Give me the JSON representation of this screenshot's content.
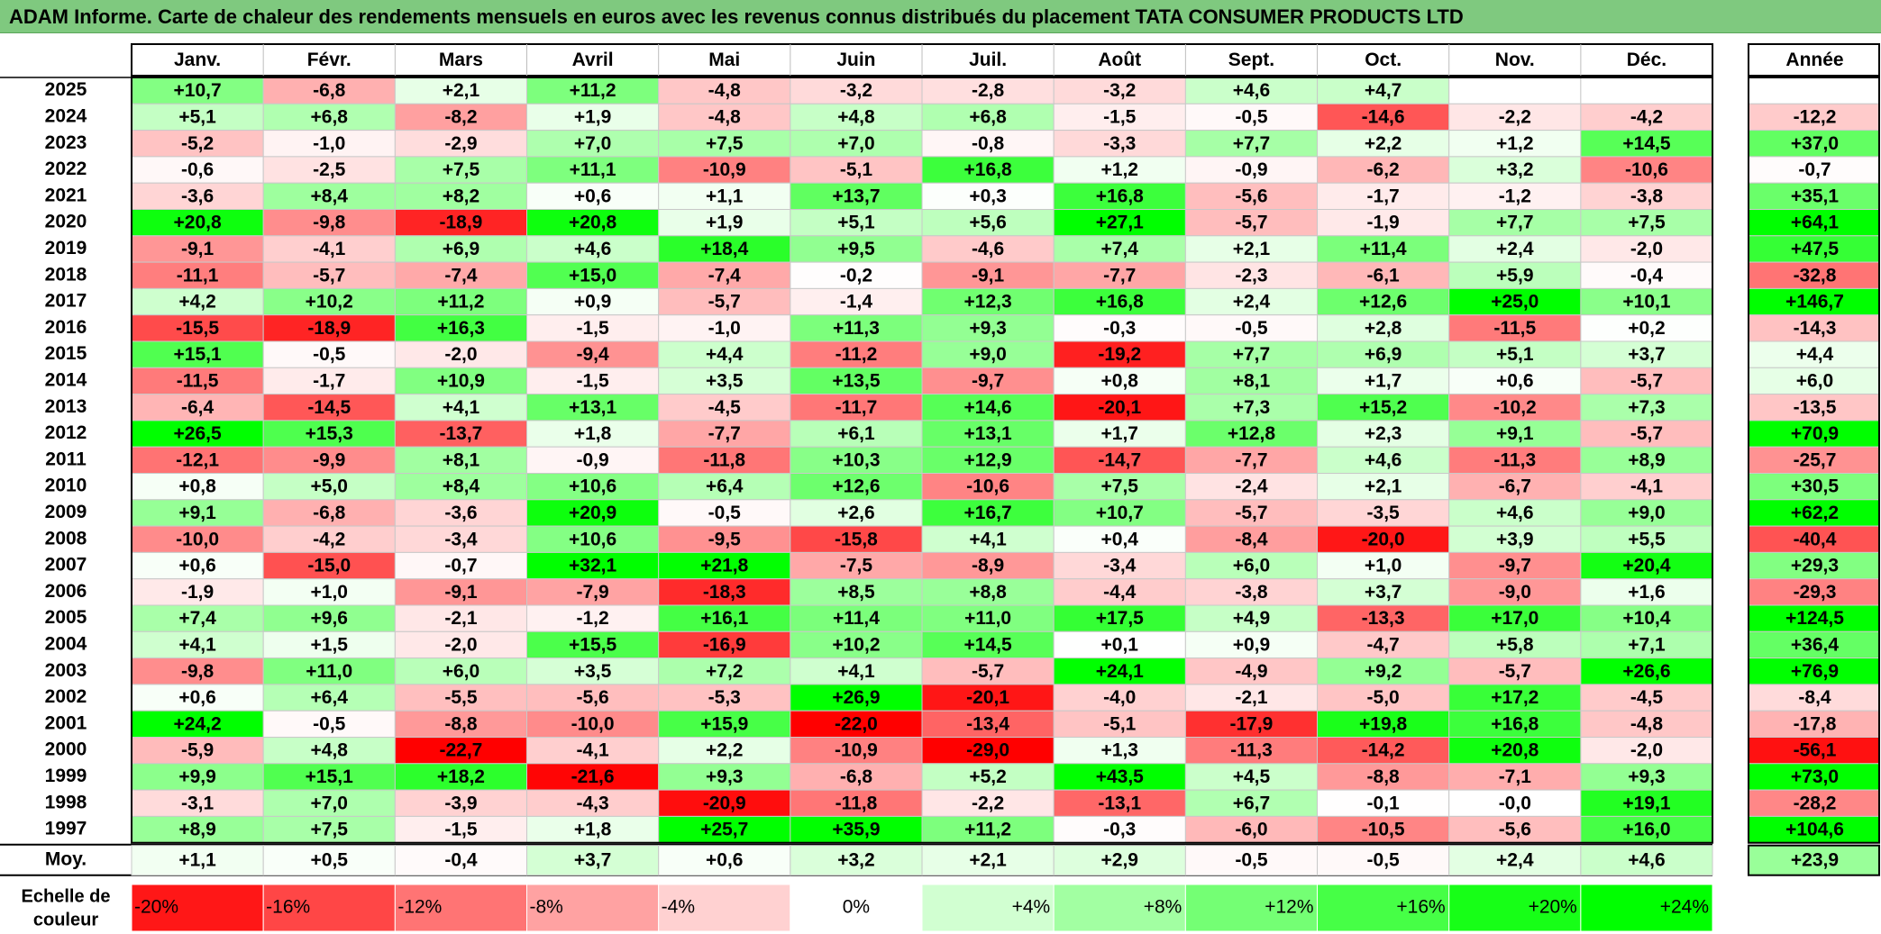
{
  "title": "ADAM Informe. Carte de chaleur des rendements mensuels en euros avec les revenus connus distribués du placement TATA CONSUMER PRODUCTS LTD",
  "colors": {
    "title_bg": "#7fc97f",
    "neg_max": "#ff0000",
    "pos_max": "#00ff00",
    "neutral": "#ffffff"
  },
  "chart_data": {
    "type": "heatmap",
    "months": [
      "Janv.",
      "Févr.",
      "Mars",
      "Avril",
      "Mai",
      "Juin",
      "Juil.",
      "Août",
      "Sept.",
      "Oct.",
      "Nov.",
      "Déc."
    ],
    "year_header": "Année",
    "rows": [
      {
        "year": "2025",
        "values": [
          "+10,7",
          "-6,8",
          "+2,1",
          "+11,2",
          "-4,8",
          "-3,2",
          "-2,8",
          "-3,2",
          "+4,6",
          "+4,7",
          "",
          ""
        ],
        "annual": ""
      },
      {
        "year": "2024",
        "values": [
          "+5,1",
          "+6,8",
          "-8,2",
          "+1,9",
          "-4,8",
          "+4,8",
          "+6,8",
          "-1,5",
          "-0,5",
          "-14,6",
          "-2,2",
          "-4,2"
        ],
        "annual": "-12,2"
      },
      {
        "year": "2023",
        "values": [
          "-5,2",
          "-1,0",
          "-2,9",
          "+7,0",
          "+7,5",
          "+7,0",
          "-0,8",
          "-3,3",
          "+7,7",
          "+2,2",
          "+1,2",
          "+14,5"
        ],
        "annual": "+37,0"
      },
      {
        "year": "2022",
        "values": [
          "-0,6",
          "-2,5",
          "+7,5",
          "+11,1",
          "-10,9",
          "-5,1",
          "+16,8",
          "+1,2",
          "-0,9",
          "-6,2",
          "+3,2",
          "-10,6"
        ],
        "annual": "-0,7"
      },
      {
        "year": "2021",
        "values": [
          "-3,6",
          "+8,4",
          "+8,2",
          "+0,6",
          "+1,1",
          "+13,7",
          "+0,3",
          "+16,8",
          "-5,6",
          "-1,7",
          "-1,2",
          "-3,8"
        ],
        "annual": "+35,1"
      },
      {
        "year": "2020",
        "values": [
          "+20,8",
          "-9,8",
          "-18,9",
          "+20,8",
          "+1,9",
          "+5,1",
          "+5,6",
          "+27,1",
          "-5,7",
          "-1,9",
          "+7,7",
          "+7,5"
        ],
        "annual": "+64,1"
      },
      {
        "year": "2019",
        "values": [
          "-9,1",
          "-4,1",
          "+6,9",
          "+4,6",
          "+18,4",
          "+9,5",
          "-4,6",
          "+7,4",
          "+2,1",
          "+11,4",
          "+2,4",
          "-2,0"
        ],
        "annual": "+47,5"
      },
      {
        "year": "2018",
        "values": [
          "-11,1",
          "-5,7",
          "-7,4",
          "+15,0",
          "-7,4",
          "-0,2",
          "-9,1",
          "-7,7",
          "-2,3",
          "-6,1",
          "+5,9",
          "-0,4"
        ],
        "annual": "-32,8"
      },
      {
        "year": "2017",
        "values": [
          "+4,2",
          "+10,2",
          "+11,2",
          "+0,9",
          "-5,7",
          "-1,4",
          "+12,3",
          "+16,8",
          "+2,4",
          "+12,6",
          "+25,0",
          "+10,1"
        ],
        "annual": "+146,7"
      },
      {
        "year": "2016",
        "values": [
          "-15,5",
          "-18,9",
          "+16,3",
          "-1,5",
          "-1,0",
          "+11,3",
          "+9,3",
          "-0,3",
          "-0,5",
          "+2,8",
          "-11,5",
          "+0,2"
        ],
        "annual": "-14,3"
      },
      {
        "year": "2015",
        "values": [
          "+15,1",
          "-0,5",
          "-2,0",
          "-9,4",
          "+4,4",
          "-11,2",
          "+9,0",
          "-19,2",
          "+7,7",
          "+6,9",
          "+5,1",
          "+3,7"
        ],
        "annual": "+4,4"
      },
      {
        "year": "2014",
        "values": [
          "-11,5",
          "-1,7",
          "+10,9",
          "-1,5",
          "+3,5",
          "+13,5",
          "-9,7",
          "+0,8",
          "+8,1",
          "+1,7",
          "+0,6",
          "-5,7"
        ],
        "annual": "+6,0"
      },
      {
        "year": "2013",
        "values": [
          "-6,4",
          "-14,5",
          "+4,1",
          "+13,1",
          "-4,5",
          "-11,7",
          "+14,6",
          "-20,1",
          "+7,3",
          "+15,2",
          "-10,2",
          "+7,3"
        ],
        "annual": "-13,5"
      },
      {
        "year": "2012",
        "values": [
          "+26,5",
          "+15,3",
          "-13,7",
          "+1,8",
          "-7,7",
          "+6,1",
          "+13,1",
          "+1,7",
          "+12,8",
          "+2,3",
          "+9,1",
          "-5,7"
        ],
        "annual": "+70,9"
      },
      {
        "year": "2011",
        "values": [
          "-12,1",
          "-9,9",
          "+8,1",
          "-0,9",
          "-11,8",
          "+10,3",
          "+12,9",
          "-14,7",
          "-7,7",
          "+4,6",
          "-11,3",
          "+8,9"
        ],
        "annual": "-25,7"
      },
      {
        "year": "2010",
        "values": [
          "+0,8",
          "+5,0",
          "+8,4",
          "+10,6",
          "+6,4",
          "+12,6",
          "-10,6",
          "+7,5",
          "-2,4",
          "+2,1",
          "-6,7",
          "-4,1"
        ],
        "annual": "+30,5"
      },
      {
        "year": "2009",
        "values": [
          "+9,1",
          "-6,8",
          "-3,6",
          "+20,9",
          "-0,5",
          "+2,6",
          "+16,7",
          "+10,7",
          "-5,7",
          "-3,5",
          "+4,6",
          "+9,0"
        ],
        "annual": "+62,2"
      },
      {
        "year": "2008",
        "values": [
          "-10,0",
          "-4,2",
          "-3,4",
          "+10,6",
          "-9,5",
          "-15,8",
          "+4,1",
          "+0,4",
          "-8,4",
          "-20,0",
          "+3,9",
          "+5,5"
        ],
        "annual": "-40,4"
      },
      {
        "year": "2007",
        "values": [
          "+0,6",
          "-15,0",
          "-0,7",
          "+32,1",
          "+21,8",
          "-7,5",
          "-8,9",
          "-3,4",
          "+6,0",
          "+1,0",
          "-9,7",
          "+20,4"
        ],
        "annual": "+29,3"
      },
      {
        "year": "2006",
        "values": [
          "-1,9",
          "+1,0",
          "-9,1",
          "-7,9",
          "-18,3",
          "+8,5",
          "+8,8",
          "-4,4",
          "-3,8",
          "+3,7",
          "-9,0",
          "+1,6"
        ],
        "annual": "-29,3"
      },
      {
        "year": "2005",
        "values": [
          "+7,4",
          "+9,6",
          "-2,1",
          "-1,2",
          "+16,1",
          "+11,4",
          "+11,0",
          "+17,5",
          "+4,9",
          "-13,3",
          "+17,0",
          "+10,4"
        ],
        "annual": "+124,5"
      },
      {
        "year": "2004",
        "values": [
          "+4,1",
          "+1,5",
          "-2,0",
          "+15,5",
          "-16,9",
          "+10,2",
          "+14,5",
          "+0,1",
          "+0,9",
          "-4,7",
          "+5,8",
          "+7,1"
        ],
        "annual": "+36,4"
      },
      {
        "year": "2003",
        "values": [
          "-9,8",
          "+11,0",
          "+6,0",
          "+3,5",
          "+7,2",
          "+4,1",
          "-5,7",
          "+24,1",
          "-4,9",
          "+9,2",
          "-5,7",
          "+26,6"
        ],
        "annual": "+76,9"
      },
      {
        "year": "2002",
        "values": [
          "+0,6",
          "+6,4",
          "-5,5",
          "-5,6",
          "-5,3",
          "+26,9",
          "-20,1",
          "-4,0",
          "-2,1",
          "-5,0",
          "+17,2",
          "-4,5"
        ],
        "annual": "-8,4"
      },
      {
        "year": "2001",
        "values": [
          "+24,2",
          "-0,5",
          "-8,8",
          "-10,0",
          "+15,9",
          "-22,0",
          "-13,4",
          "-5,1",
          "-17,9",
          "+19,8",
          "+16,8",
          "-4,8"
        ],
        "annual": "-17,8"
      },
      {
        "year": "2000",
        "values": [
          "-5,9",
          "+4,8",
          "-22,7",
          "-4,1",
          "+2,2",
          "-10,9",
          "-29,0",
          "+1,3",
          "-11,3",
          "-14,2",
          "+20,8",
          "-2,0"
        ],
        "annual": "-56,1"
      },
      {
        "year": "1999",
        "values": [
          "+9,9",
          "+15,1",
          "+18,2",
          "-21,6",
          "+9,3",
          "-6,8",
          "+5,2",
          "+43,5",
          "+4,5",
          "-8,8",
          "-7,1",
          "+9,3"
        ],
        "annual": "+73,0"
      },
      {
        "year": "1998",
        "values": [
          "-3,1",
          "+7,0",
          "-3,9",
          "-4,3",
          "-20,9",
          "-11,8",
          "-2,2",
          "-13,1",
          "+6,7",
          "-0,1",
          "-0,0",
          "+19,1"
        ],
        "annual": "-28,2"
      },
      {
        "year": "1997",
        "values": [
          "+8,9",
          "+7,5",
          "-1,5",
          "+1,8",
          "+25,7",
          "+35,9",
          "+11,2",
          "-0,3",
          "-6,0",
          "-10,5",
          "-5,6",
          "+16,0"
        ],
        "annual": "+104,6"
      }
    ],
    "average": {
      "label": "Moy.",
      "values": [
        "+1,1",
        "+0,5",
        "-0,4",
        "+3,7",
        "+0,6",
        "+3,2",
        "+2,1",
        "+2,9",
        "-0,5",
        "-0,5",
        "+2,4",
        "+4,6"
      ],
      "annual": "+23,9"
    },
    "legend": {
      "label_line1": "Echelle de",
      "label_line2": "couleur",
      "steps": [
        "-20%",
        "-16%",
        "-12%",
        "-8%",
        "-4%",
        "0%",
        "+4%",
        "+8%",
        "+12%",
        "+16%",
        "+20%",
        "+24%"
      ]
    }
  }
}
